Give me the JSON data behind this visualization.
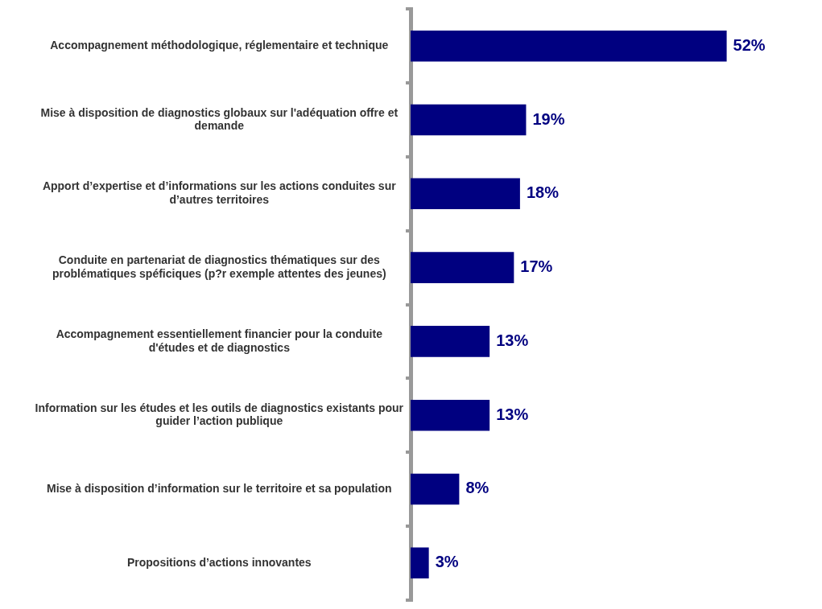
{
  "chart_data": {
    "type": "bar",
    "orientation": "horizontal",
    "categories": [
      "Accompagnement méthodologique, réglementaire et technique",
      "Mise à disposition de diagnostics globaux sur l'adéquation offre et demande",
      "Apport d’expertise et d’informations sur les actions conduites sur d’autres territoires",
      "Conduite en partenariat de diagnostics thématiques sur des problématiques spéficiques (p?r exemple attentes des jeunes)",
      "Accompagnement essentiellement financier pour la conduite d'études et de diagnostics",
      "Information sur les études et les outils de diagnostics existants pour guider l’action publique",
      "Mise à disposition d’information sur le territoire et sa population",
      "Propositions d’actions innovantes"
    ],
    "values": [
      52,
      19,
      18,
      17,
      13,
      13,
      8,
      3
    ],
    "value_labels": [
      "52%",
      "19%",
      "18%",
      "17%",
      "13%",
      "13%",
      "8%",
      "3%"
    ],
    "color": "#000080"
  }
}
